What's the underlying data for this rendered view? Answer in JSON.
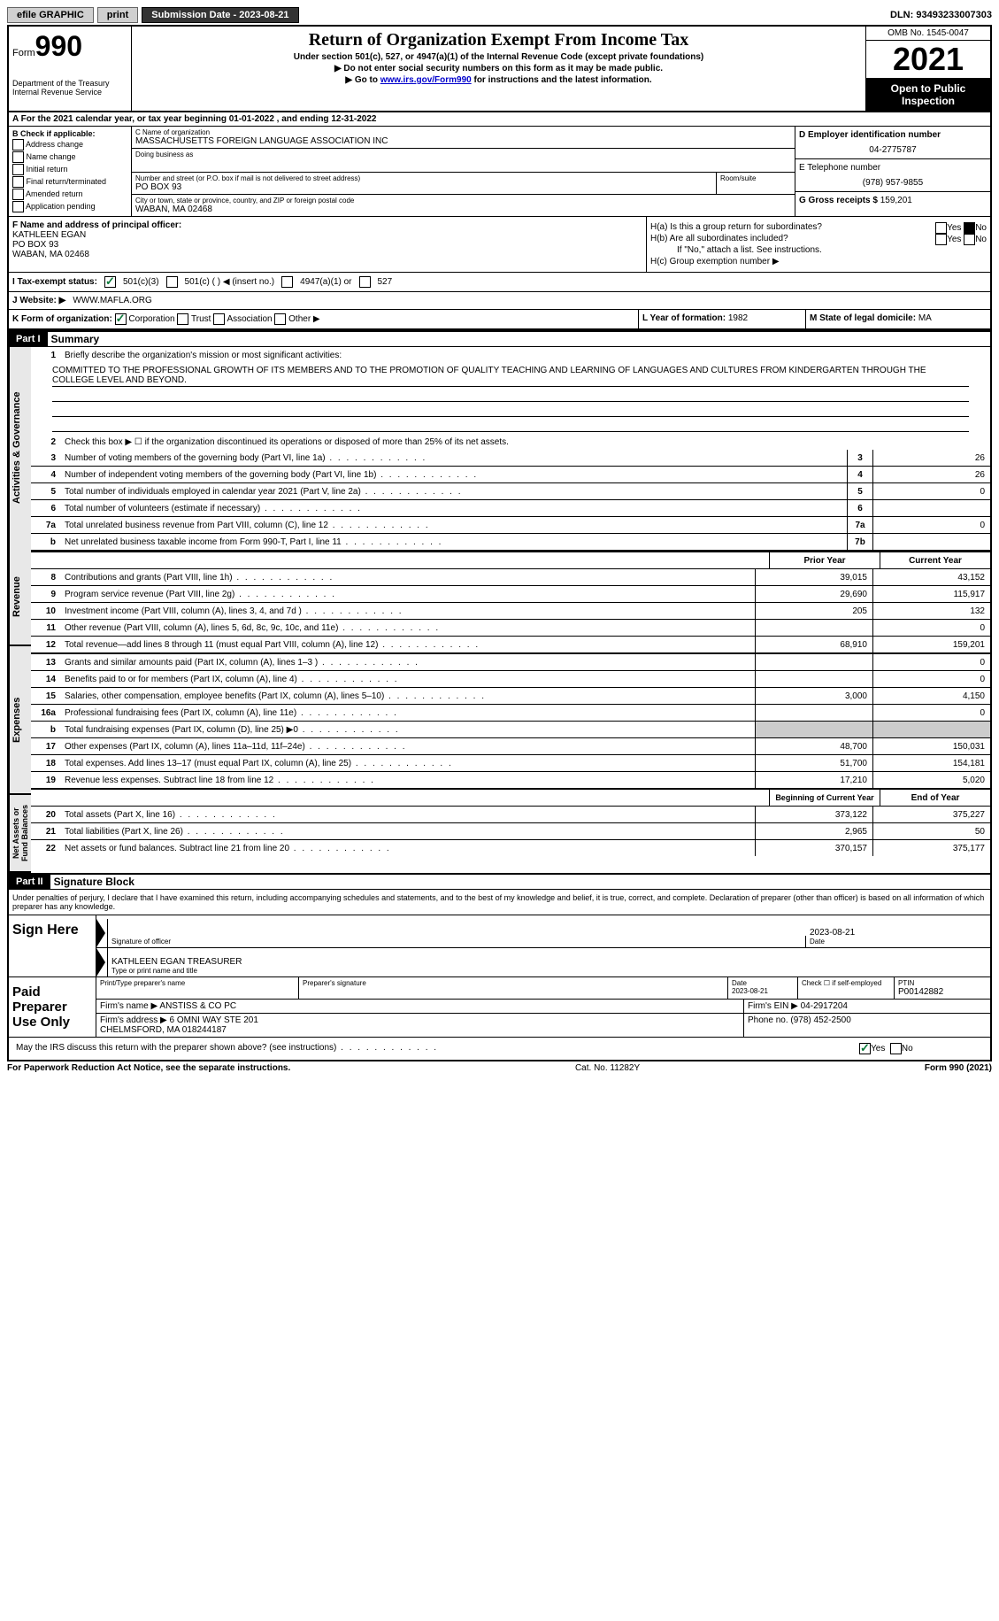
{
  "topbar": {
    "efile": "efile GRAPHIC",
    "print": "print",
    "submission": "Submission Date - 2023-08-21",
    "dln": "DLN: 93493233007303"
  },
  "header": {
    "form_word": "Form",
    "form_num": "990",
    "title": "Return of Organization Exempt From Income Tax",
    "sub1": "Under section 501(c), 527, or 4947(a)(1) of the Internal Revenue Code (except private foundations)",
    "sub2": "▶ Do not enter social security numbers on this form as it may be made public.",
    "sub3_pre": "▶ Go to ",
    "sub3_link": "www.irs.gov/Form990",
    "sub3_post": " for instructions and the latest information.",
    "dept": "Department of the Treasury\nInternal Revenue Service",
    "omb": "OMB No. 1545-0047",
    "year": "2021",
    "open": "Open to Public Inspection"
  },
  "rowA": "A  For the 2021 calendar year, or tax year beginning 01-01-2022   , and ending 12-31-2022",
  "colB": {
    "label": "B Check if applicable:",
    "items": [
      "Address change",
      "Name change",
      "Initial return",
      "Final return/terminated",
      "Amended return",
      "Application pending"
    ]
  },
  "colC": {
    "name_label": "C Name of organization",
    "name": "MASSACHUSETTS FOREIGN LANGUAGE ASSOCIATION INC",
    "dba_label": "Doing business as",
    "dba": "",
    "addr_label": "Number and street (or P.O. box if mail is not delivered to street address)",
    "room_label": "Room/suite",
    "addr": "PO BOX 93",
    "city_label": "City or town, state or province, country, and ZIP or foreign postal code",
    "city": "WABAN, MA  02468"
  },
  "colD": {
    "ein_label": "D Employer identification number",
    "ein": "04-2775787",
    "tel_label": "E Telephone number",
    "tel": "(978) 957-9855",
    "gross_label": "G Gross receipts $",
    "gross": "159,201"
  },
  "colF": {
    "label": "F  Name and address of principal officer:",
    "name": "KATHLEEN EGAN",
    "addr1": "PO BOX 93",
    "addr2": "WABAN, MA  02468"
  },
  "colH": {
    "ha": "H(a)  Is this a group return for subordinates?",
    "hb": "H(b)  Are all subordinates included?",
    "hb_note": "If \"No,\" attach a list. See instructions.",
    "hc": "H(c)  Group exemption number ▶",
    "yes": "Yes",
    "no": "No"
  },
  "rowI": {
    "label": "I  Tax-exempt status:",
    "opt1": "501(c)(3)",
    "opt2": "501(c) (  ) ◀ (insert no.)",
    "opt3": "4947(a)(1) or",
    "opt4": "527"
  },
  "rowJ": {
    "label": "J  Website: ▶",
    "val": "WWW.MAFLA.ORG"
  },
  "rowK": {
    "label": "K Form of organization:",
    "opts": [
      "Corporation",
      "Trust",
      "Association",
      "Other ▶"
    ],
    "l_label": "L Year of formation:",
    "l_val": "1982",
    "m_label": "M State of legal domicile:",
    "m_val": "MA"
  },
  "part1": {
    "header": "Part I",
    "title": "Summary",
    "l1_label": "Briefly describe the organization's mission or most significant activities:",
    "l1_text": "COMMITTED TO THE PROFESSIONAL GROWTH OF ITS MEMBERS AND TO THE PROMOTION OF QUALITY TEACHING AND LEARNING OF LANGUAGES AND CULTURES FROM KINDERGARTEN THROUGH THE COLLEGE LEVEL AND BEYOND.",
    "l2": "Check this box ▶ ☐ if the organization discontinued its operations or disposed of more than 25% of its net assets.",
    "lines_ag": [
      {
        "n": "3",
        "d": "Number of voting members of the governing body (Part VI, line 1a)",
        "b": "3",
        "v": "26"
      },
      {
        "n": "4",
        "d": "Number of independent voting members of the governing body (Part VI, line 1b)",
        "b": "4",
        "v": "26"
      },
      {
        "n": "5",
        "d": "Total number of individuals employed in calendar year 2021 (Part V, line 2a)",
        "b": "5",
        "v": "0"
      },
      {
        "n": "6",
        "d": "Total number of volunteers (estimate if necessary)",
        "b": "6",
        "v": ""
      },
      {
        "n": "7a",
        "d": "Total unrelated business revenue from Part VIII, column (C), line 12",
        "b": "7a",
        "v": "0"
      },
      {
        "n": "b",
        "d": "Net unrelated business taxable income from Form 990-T, Part I, line 11",
        "b": "7b",
        "v": ""
      }
    ],
    "col_prior": "Prior Year",
    "col_current": "Current Year",
    "revenue": [
      {
        "n": "8",
        "d": "Contributions and grants (Part VIII, line 1h)",
        "p": "39,015",
        "c": "43,152"
      },
      {
        "n": "9",
        "d": "Program service revenue (Part VIII, line 2g)",
        "p": "29,690",
        "c": "115,917"
      },
      {
        "n": "10",
        "d": "Investment income (Part VIII, column (A), lines 3, 4, and 7d )",
        "p": "205",
        "c": "132"
      },
      {
        "n": "11",
        "d": "Other revenue (Part VIII, column (A), lines 5, 6d, 8c, 9c, 10c, and 11e)",
        "p": "",
        "c": "0"
      },
      {
        "n": "12",
        "d": "Total revenue—add lines 8 through 11 (must equal Part VIII, column (A), line 12)",
        "p": "68,910",
        "c": "159,201"
      }
    ],
    "expenses": [
      {
        "n": "13",
        "d": "Grants and similar amounts paid (Part IX, column (A), lines 1–3 )",
        "p": "",
        "c": "0"
      },
      {
        "n": "14",
        "d": "Benefits paid to or for members (Part IX, column (A), line 4)",
        "p": "",
        "c": "0"
      },
      {
        "n": "15",
        "d": "Salaries, other compensation, employee benefits (Part IX, column (A), lines 5–10)",
        "p": "3,000",
        "c": "4,150"
      },
      {
        "n": "16a",
        "d": "Professional fundraising fees (Part IX, column (A), line 11e)",
        "p": "",
        "c": "0"
      },
      {
        "n": "b",
        "d": "Total fundraising expenses (Part IX, column (D), line 25) ▶0",
        "p": "GRAY",
        "c": "GRAY"
      },
      {
        "n": "17",
        "d": "Other expenses (Part IX, column (A), lines 11a–11d, 11f–24e)",
        "p": "48,700",
        "c": "150,031"
      },
      {
        "n": "18",
        "d": "Total expenses. Add lines 13–17 (must equal Part IX, column (A), line 25)",
        "p": "51,700",
        "c": "154,181"
      },
      {
        "n": "19",
        "d": "Revenue less expenses. Subtract line 18 from line 12",
        "p": "17,210",
        "c": "5,020"
      }
    ],
    "col_begin": "Beginning of Current Year",
    "col_end": "End of Year",
    "netassets": [
      {
        "n": "20",
        "d": "Total assets (Part X, line 16)",
        "p": "373,122",
        "c": "375,227"
      },
      {
        "n": "21",
        "d": "Total liabilities (Part X, line 26)",
        "p": "2,965",
        "c": "50"
      },
      {
        "n": "22",
        "d": "Net assets or fund balances. Subtract line 21 from line 20",
        "p": "370,157",
        "c": "375,177"
      }
    ],
    "vlabels": {
      "ag": "Activities & Governance",
      "rev": "Revenue",
      "exp": "Expenses",
      "net": "Net Assets or\nFund Balances"
    }
  },
  "part2": {
    "header": "Part II",
    "title": "Signature Block",
    "penalty": "Under penalties of perjury, I declare that I have examined this return, including accompanying schedules and statements, and to the best of my knowledge and belief, it is true, correct, and complete. Declaration of preparer (other than officer) is based on all information of which preparer has any knowledge.",
    "sign_here": "Sign Here",
    "sig_officer": "Signature of officer",
    "sig_date": "2023-08-21",
    "date_label": "Date",
    "sig_name": "KATHLEEN EGAN  TREASURER",
    "sig_name_label": "Type or print name and title",
    "paid": "Paid Preparer Use Only",
    "prep_name_label": "Print/Type preparer's name",
    "prep_sig_label": "Preparer's signature",
    "prep_date_label": "Date",
    "prep_date": "2023-08-21",
    "prep_check": "Check ☐ if self-employed",
    "ptin_label": "PTIN",
    "ptin": "P00142882",
    "firm_name_label": "Firm's name    ▶",
    "firm_name": "ANSTISS & CO PC",
    "firm_ein_label": "Firm's EIN ▶",
    "firm_ein": "04-2917204",
    "firm_addr_label": "Firm's address ▶",
    "firm_addr": "6 OMNI WAY STE 201\nCHELMSFORD, MA  018244187",
    "phone_label": "Phone no.",
    "phone": "(978) 452-2500",
    "discuss": "May the IRS discuss this return with the preparer shown above? (see instructions)",
    "yes": "Yes",
    "no": "No"
  },
  "footer": {
    "left": "For Paperwork Reduction Act Notice, see the separate instructions.",
    "mid": "Cat. No. 11282Y",
    "right": "Form 990 (2021)"
  }
}
